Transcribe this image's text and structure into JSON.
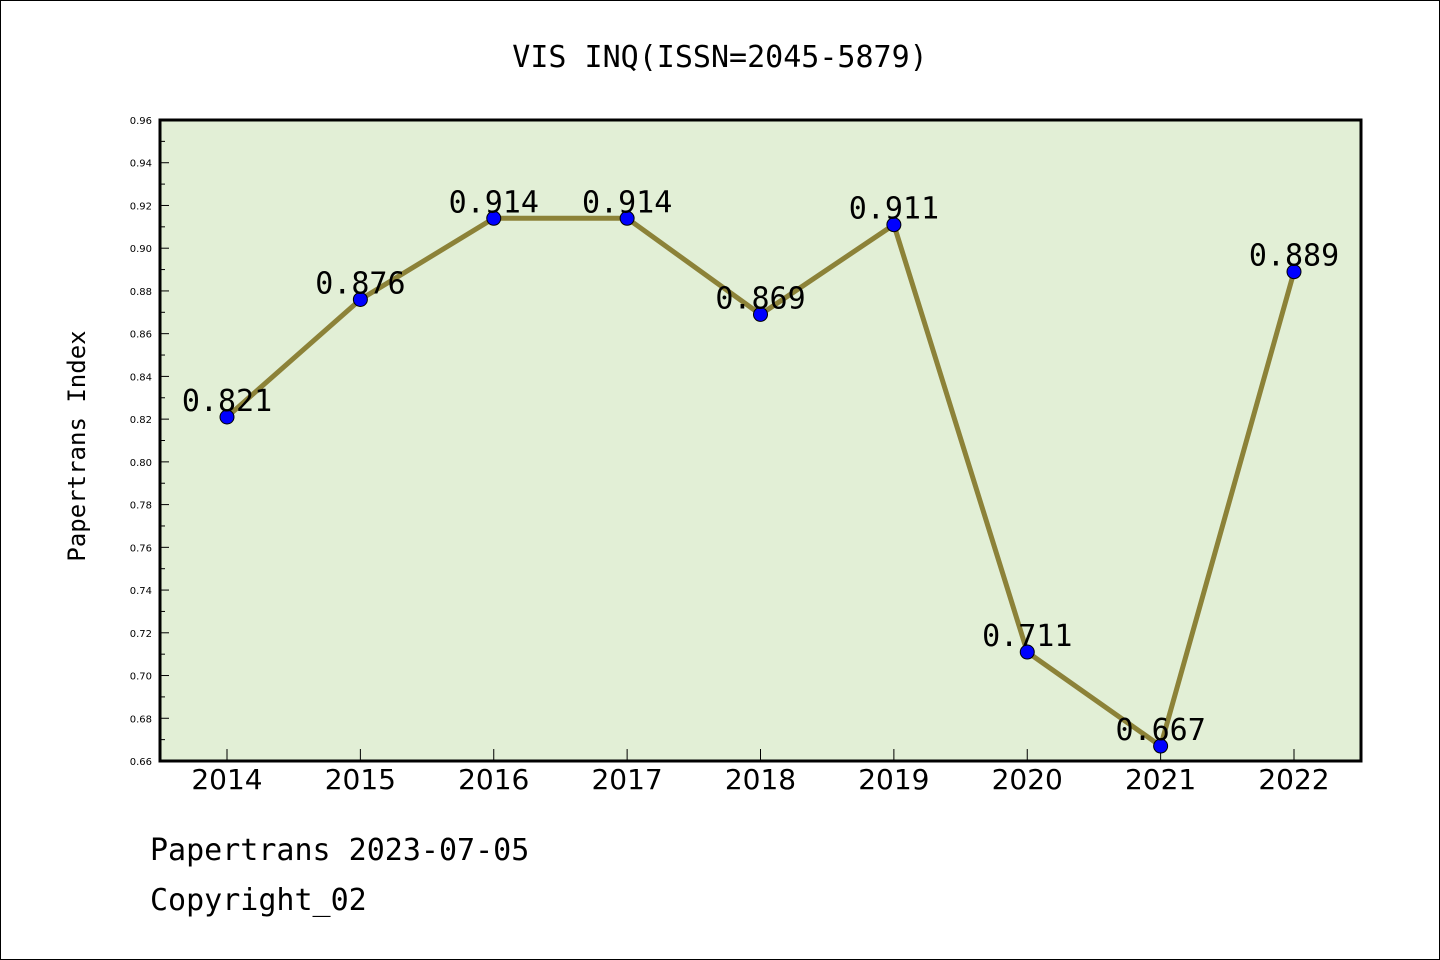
{
  "chart_data": {
    "type": "line",
    "title": "VIS INQ(ISSN=2045-5879)",
    "ylabel": "Papertrans Index",
    "xlabel": "",
    "categories": [
      "2014",
      "2015",
      "2016",
      "2017",
      "2018",
      "2019",
      "2020",
      "2021",
      "2022"
    ],
    "series": [
      {
        "values": [
          0.821,
          0.876,
          0.914,
          0.914,
          0.869,
          0.911,
          0.711,
          0.667,
          0.889
        ]
      }
    ],
    "data_labels": [
      "0.821",
      "0.876",
      "0.914",
      "0.914",
      "0.869",
      "0.911",
      "0.711",
      "0.667",
      "0.889"
    ],
    "ylim": [
      0.66,
      0.96
    ],
    "yticks": [
      "0.66",
      "0.68",
      "0.70",
      "0.72",
      "0.74",
      "0.76",
      "0.78",
      "0.80",
      "0.82",
      "0.84",
      "0.86",
      "0.88",
      "0.90",
      "0.92",
      "0.94",
      "0.96"
    ],
    "grid": false,
    "colors": {
      "line": "#8c8238",
      "marker": "#0000ff",
      "plot_background": "#e2efd6"
    }
  },
  "footer": {
    "line1": "Papertrans 2023-07-05",
    "line2": "Copyright_02"
  }
}
